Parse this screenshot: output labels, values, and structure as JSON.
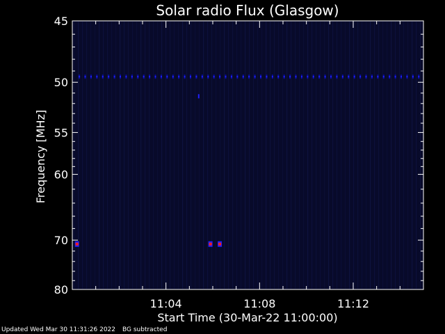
{
  "chart_data": {
    "type": "heatmap",
    "title": "Solar radio Flux (Glasgow)",
    "xlabel": "Start Time (30-Mar-22 11:00:00)",
    "ylabel": "Frequency [MHz]",
    "x_unit": "minutes after 11:00:00",
    "xlim": [
      0,
      15
    ],
    "ylim": [
      80,
      45
    ],
    "y_ticks": [
      45,
      50,
      55,
      60,
      70,
      80
    ],
    "x_ticks": [
      {
        "value": 4,
        "label": "11:04"
      },
      {
        "value": 8,
        "label": "11:08"
      },
      {
        "value": 12,
        "label": "11:12"
      }
    ],
    "colormap": {
      "background": "#080a2a",
      "low": "#0a0fa0",
      "mid": "#2020ff",
      "high": "#ff1a1a"
    },
    "features": [
      {
        "name": "interference band",
        "frequency": 49.5,
        "x_start": 0.3,
        "x_end": 15,
        "x_step": 0.25,
        "intensity": "low"
      },
      {
        "name": "blip",
        "frequency": 51.3,
        "x": 5.4,
        "intensity": "low"
      },
      {
        "name": "burst",
        "frequency": 70.7,
        "x": 0.2,
        "intensity": "high"
      },
      {
        "name": "burst",
        "frequency": 70.7,
        "x": 5.9,
        "intensity": "high"
      },
      {
        "name": "burst",
        "frequency": 70.7,
        "x": 6.3,
        "intensity": "high"
      }
    ]
  },
  "footer": {
    "updated": "Updated Wed Mar 30 11:31:26 2022",
    "note": "BG subtracted"
  }
}
